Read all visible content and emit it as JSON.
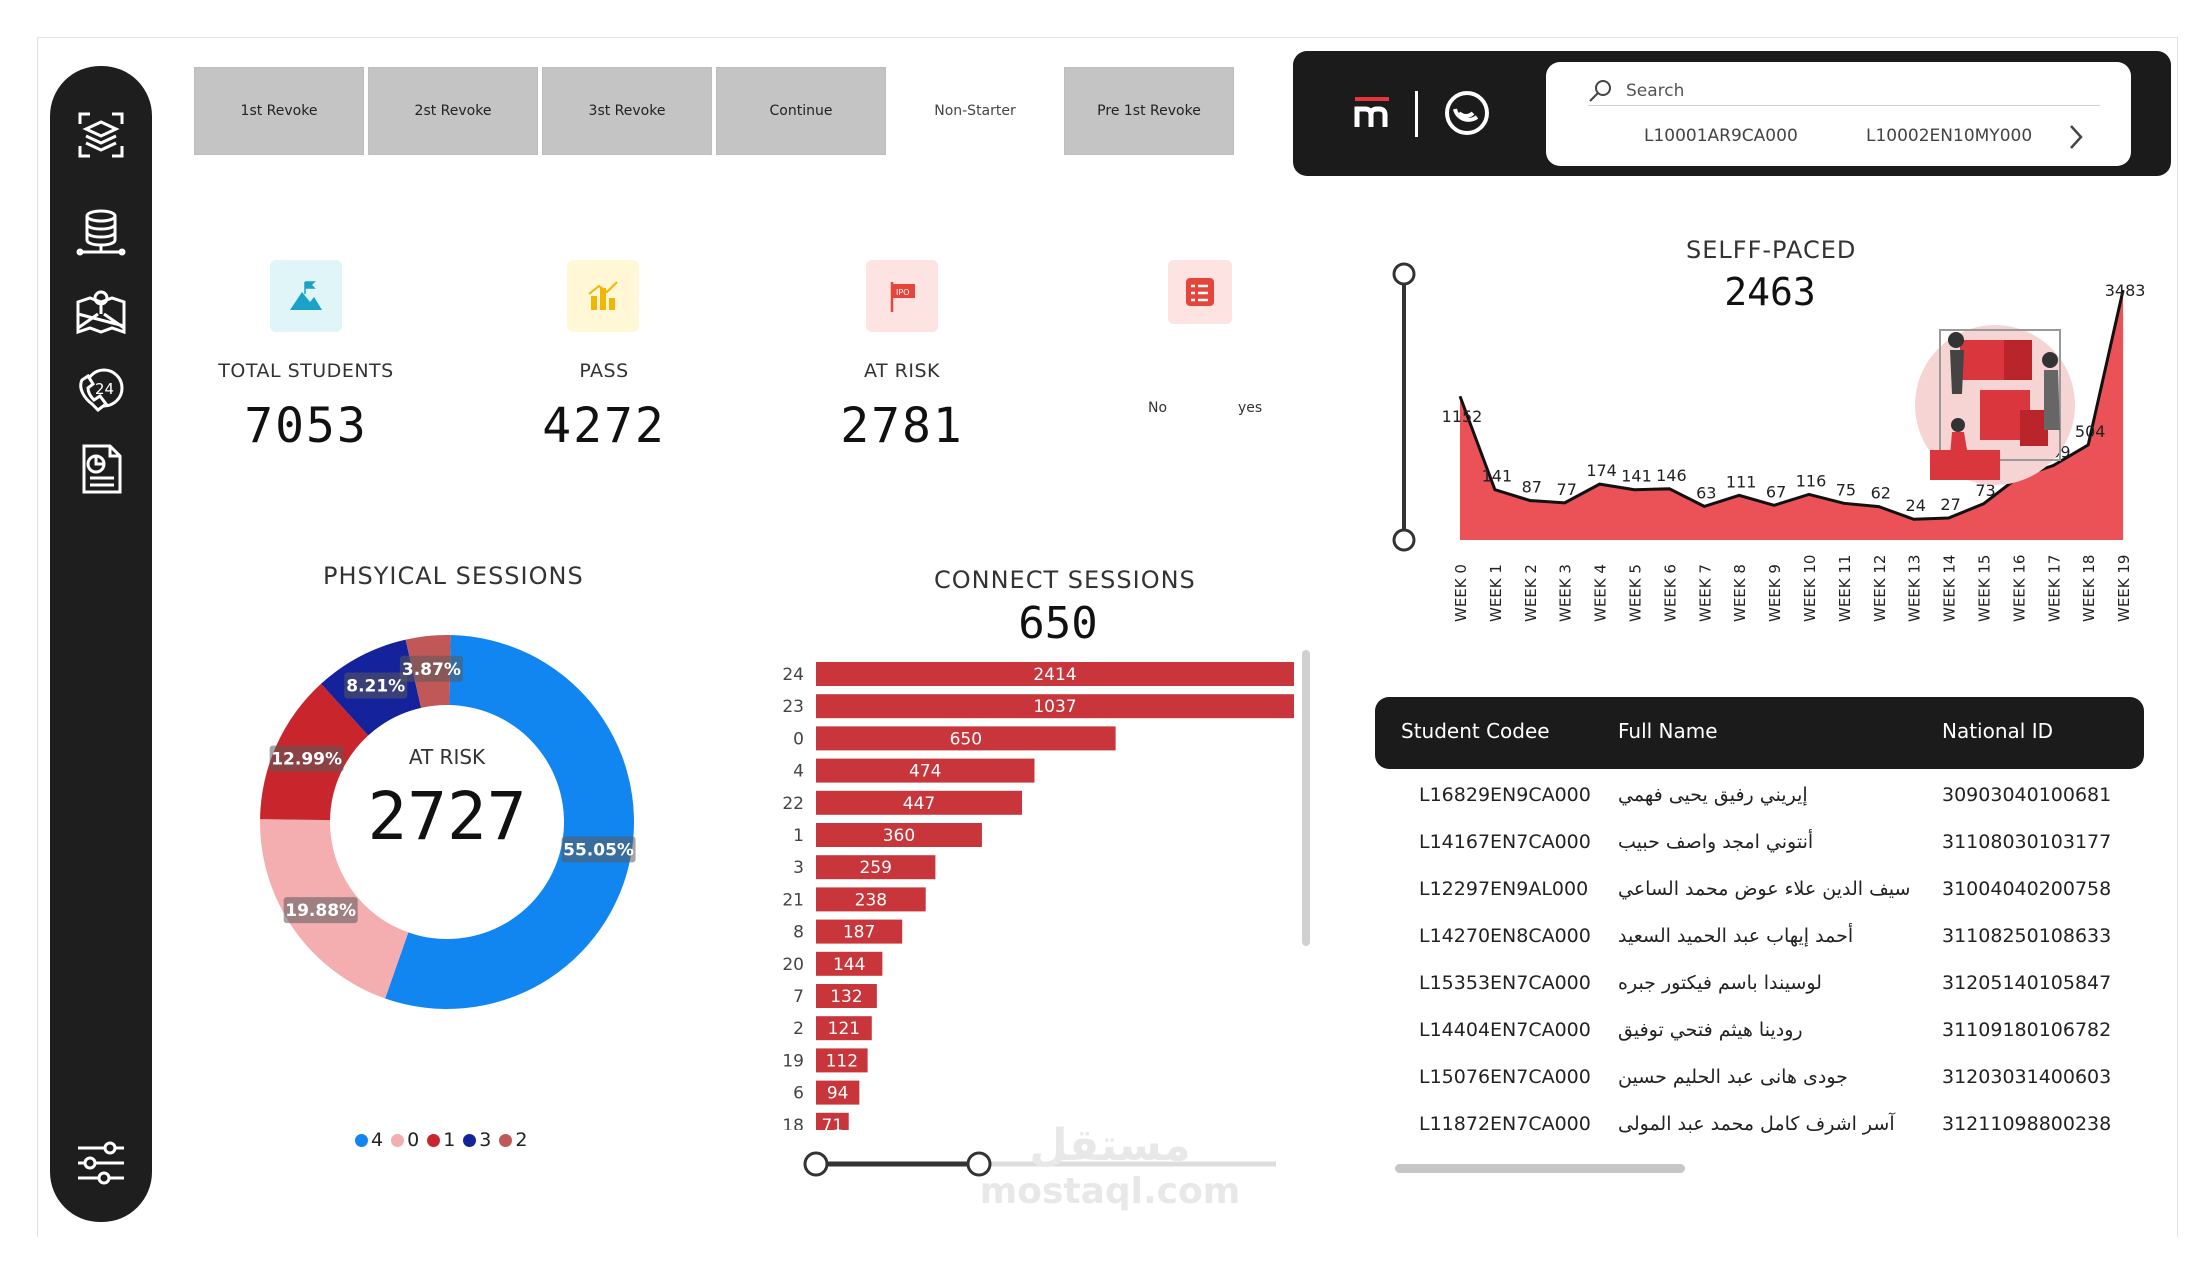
{
  "tabs": [
    {
      "label": "1st Revoke",
      "active": true
    },
    {
      "label": "2st Revoke",
      "active": true
    },
    {
      "label": "3st Revoke",
      "active": true
    },
    {
      "label": "Continue",
      "active": true
    },
    {
      "label": "Non-Starter",
      "active": false
    },
    {
      "label": "Pre 1st Revoke",
      "active": true
    }
  ],
  "search": {
    "placeholder": "Search",
    "codes": [
      "L10001AR9CA000",
      "L10002EN10MY000"
    ]
  },
  "kpis": {
    "total_students": {
      "label": "TOTAL STUDENTS",
      "value": "7053"
    },
    "pass": {
      "label": "PASS",
      "value": "4272"
    },
    "at_risk": {
      "label": "AT RISK",
      "value": "2781"
    },
    "toggle": {
      "no": "No",
      "yes": "yes"
    }
  },
  "physical": {
    "title": "PHSYICAL SESSIONS",
    "center_label": "AT RISK",
    "center_value": "2727",
    "chart_data": {
      "type": "pie",
      "slices": [
        {
          "name": "4",
          "value": 55.05,
          "label": "55.05%",
          "color": "#1186f0"
        },
        {
          "name": "0",
          "value": 19.88,
          "label": "19.88%",
          "color": "#f5aeb0"
        },
        {
          "name": "1",
          "value": 12.99,
          "label": "12.99%",
          "color": "#c8262c"
        },
        {
          "name": "3",
          "value": 8.21,
          "label": "8.21%",
          "color": "#14229c"
        },
        {
          "name": "2",
          "value": 3.87,
          "label": "3.87%",
          "color": "#c05858"
        }
      ]
    },
    "legend": [
      {
        "name": "4",
        "color": "#1186f0"
      },
      {
        "name": "0",
        "color": "#f5aeb0"
      },
      {
        "name": "1",
        "color": "#c8262c"
      },
      {
        "name": "3",
        "color": "#14229c"
      },
      {
        "name": "2",
        "color": "#c05858"
      }
    ]
  },
  "connect": {
    "title": "CONNECT SESSIONS",
    "total": "650",
    "chart_data": {
      "type": "bar",
      "orientation": "horizontal",
      "categories": [
        "24",
        "23",
        "0",
        "4",
        "22",
        "1",
        "3",
        "21",
        "8",
        "20",
        "7",
        "2",
        "19",
        "6",
        "18"
      ],
      "values": [
        2414,
        1037,
        650,
        474,
        447,
        360,
        259,
        238,
        187,
        144,
        132,
        121,
        112,
        94,
        71
      ],
      "color": "#c8353a"
    }
  },
  "selfpaced": {
    "title": "SELFF-PACED",
    "total": "2463",
    "chart_data": {
      "type": "area",
      "categories": [
        "WEEK 0",
        "WEEK 1",
        "WEEK 2",
        "WEEK 3",
        "WEEK 4",
        "WEEK 5",
        "WEEK 6",
        "WEEK 7",
        "WEEK 8",
        "WEEK 9",
        "WEEK 10",
        "WEEK 11",
        "WEEK 12",
        "WEEK 13",
        "WEEK 14",
        "WEEK 15",
        "WEEK 16",
        "WEEK 17",
        "WEEK 18",
        "WEEK 19"
      ],
      "values": [
        1152,
        141,
        87,
        77,
        174,
        141,
        146,
        63,
        111,
        67,
        116,
        75,
        62,
        24,
        27,
        73,
        221,
        309,
        504,
        3483
      ],
      "color": "#e8343a"
    }
  },
  "table": {
    "headers": [
      "Student Codee",
      "Full Name",
      "National ID"
    ],
    "rows": [
      [
        "L16829EN9CA000",
        "إيريني رفيق يحيى فهمي",
        "30903040100681"
      ],
      [
        "L14167EN7CA000",
        "أنتوني امجد واصف حبيب",
        "31108030103177"
      ],
      [
        "L12297EN9AL000",
        "سيف الدين علاء عوض محمد الساعي",
        "31004040200758"
      ],
      [
        "L14270EN8CA000",
        "أحمد إيهاب عبد الحميد السعيد",
        "31108250108633"
      ],
      [
        "L15353EN7CA000",
        "لوسيندا باسم فيكتور جبره",
        "31205140105847"
      ],
      [
        "L14404EN7CA000",
        "رودينا هيثم فتحي توفيق",
        "31109180106782"
      ],
      [
        "L15076EN7CA000",
        "جودى هانى عبد الحليم حسين",
        "31203031400603"
      ],
      [
        "L11872EN7CA000",
        "آسر اشرف كامل محمد عبد المولى",
        "31211098800238"
      ]
    ]
  },
  "watermark": {
    "arabic": "مستقل",
    "latin": "mostaql.com"
  }
}
